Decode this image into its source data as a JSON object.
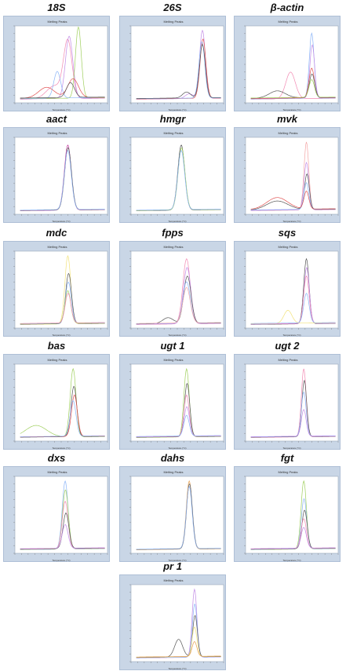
{
  "figure": {
    "panel_title": "Melting Peaks",
    "x_axis_label": "Temperature (°C)"
  },
  "chart_data": [
    {
      "type": "line",
      "gene": "18S",
      "xlim": [
        60,
        95
      ],
      "ylim": [
        0,
        1.3
      ],
      "series": [
        {
          "color": "#f28ab3",
          "peaks": [
            {
              "t": 80,
              "h": 0.95,
              "w": 1.6
            },
            {
              "t": 75,
              "h": 0.22,
              "w": 3
            }
          ]
        },
        {
          "color": "#c28be6",
          "peaks": [
            {
              "t": 80.5,
              "h": 1.05,
              "w": 1.4
            }
          ]
        },
        {
          "color": "#9fcf5d",
          "peaks": [
            {
              "t": 84,
              "h": 1.2,
              "w": 1.1
            }
          ]
        },
        {
          "color": "#8ab4f8",
          "peaks": [
            {
              "t": 76,
              "h": 0.45,
              "w": 1.3
            }
          ]
        },
        {
          "color": "#e05050",
          "peaks": [
            {
              "t": 82,
              "h": 0.32,
              "w": 2
            },
            {
              "t": 72,
              "h": 0.18,
              "w": 3
            }
          ]
        },
        {
          "color": "#555555",
          "peaks": [
            {
              "t": 81,
              "h": 0.25,
              "w": 1.5
            }
          ]
        }
      ]
    },
    {
      "type": "line",
      "gene": "26S",
      "xlim": [
        60,
        95
      ],
      "ylim": [
        0,
        1.3
      ],
      "series": [
        {
          "color": "#c28be6",
          "peaks": [
            {
              "t": 87,
              "h": 1.15,
              "w": 1.1
            },
            {
              "t": 82,
              "h": 0.08,
              "w": 1.5
            }
          ]
        },
        {
          "color": "#e05050",
          "peaks": [
            {
              "t": 87.2,
              "h": 1.0,
              "w": 1.1
            }
          ]
        },
        {
          "color": "#8ab4f8",
          "peaks": [
            {
              "t": 86.8,
              "h": 0.95,
              "w": 1.1
            }
          ]
        },
        {
          "color": "#555555",
          "peaks": [
            {
              "t": 87,
              "h": 0.9,
              "w": 1.1
            },
            {
              "t": 81,
              "h": 0.1,
              "w": 1.5
            }
          ]
        }
      ]
    },
    {
      "type": "line",
      "gene": "β-actin",
      "xlim": [
        60,
        95
      ],
      "ylim": [
        0,
        1.3
      ],
      "series": [
        {
          "color": "#f28ab3",
          "peaks": [
            {
              "t": 77,
              "h": 0.45,
              "w": 1.8
            }
          ]
        },
        {
          "color": "#8ab4f8",
          "peaks": [
            {
              "t": 85,
              "h": 1.1,
              "w": 0.9
            }
          ]
        },
        {
          "color": "#c28be6",
          "peaks": [
            {
              "t": 85.2,
              "h": 0.9,
              "w": 0.9
            }
          ]
        },
        {
          "color": "#e05050",
          "peaks": [
            {
              "t": 85,
              "h": 0.5,
              "w": 1
            }
          ]
        },
        {
          "color": "#555555",
          "peaks": [
            {
              "t": 85.1,
              "h": 0.4,
              "w": 1
            },
            {
              "t": 72,
              "h": 0.12,
              "w": 3
            }
          ]
        },
        {
          "color": "#9fcf5d",
          "peaks": [
            {
              "t": 85,
              "h": 0.3,
              "w": 1
            }
          ]
        }
      ]
    },
    {
      "type": "line",
      "gene": "aact",
      "xlim": [
        60,
        95
      ],
      "ylim": [
        0,
        1.3
      ],
      "series": [
        {
          "color": "#c040a0",
          "peaks": [
            {
              "t": 80,
              "h": 1.1,
              "w": 1.3
            }
          ]
        },
        {
          "color": "#555555",
          "peaks": [
            {
              "t": 80.1,
              "h": 1.05,
              "w": 1.3
            }
          ]
        },
        {
          "color": "#8ab4f8",
          "peaks": [
            {
              "t": 80,
              "h": 1.0,
              "w": 1.3
            }
          ]
        }
      ]
    },
    {
      "type": "line",
      "gene": "hmgr",
      "xlim": [
        60,
        95
      ],
      "ylim": [
        0,
        1.3
      ],
      "series": [
        {
          "color": "#555555",
          "peaks": [
            {
              "t": 79,
              "h": 1.1,
              "w": 1.3
            }
          ]
        },
        {
          "color": "#9fcf5d",
          "peaks": [
            {
              "t": 79.1,
              "h": 1.05,
              "w": 1.3
            }
          ]
        },
        {
          "color": "#8ab4f8",
          "peaks": [
            {
              "t": 79,
              "h": 1.0,
              "w": 1.3
            }
          ]
        }
      ]
    },
    {
      "type": "line",
      "gene": "mvk",
      "xlim": [
        60,
        95
      ],
      "ylim": [
        0,
        1.3
      ],
      "series": [
        {
          "color": "#f4a6a6",
          "peaks": [
            {
              "t": 83,
              "h": 1.15,
              "w": 0.9
            }
          ]
        },
        {
          "color": "#c28be6",
          "peaks": [
            {
              "t": 83,
              "h": 0.8,
              "w": 0.9
            }
          ]
        },
        {
          "color": "#555555",
          "peaks": [
            {
              "t": 83.2,
              "h": 0.6,
              "w": 0.9
            },
            {
              "t": 72,
              "h": 0.15,
              "w": 4
            }
          ]
        },
        {
          "color": "#8ab4f8",
          "peaks": [
            {
              "t": 83,
              "h": 0.45,
              "w": 0.9
            }
          ]
        },
        {
          "color": "#e05050",
          "peaks": [
            {
              "t": 83,
              "h": 0.3,
              "w": 0.9
            },
            {
              "t": 72,
              "h": 0.2,
              "w": 4
            }
          ]
        }
      ]
    },
    {
      "type": "line",
      "gene": "mdc",
      "xlim": [
        60,
        95
      ],
      "ylim": [
        0,
        1.3
      ],
      "series": [
        {
          "color": "#f2e27a",
          "peaks": [
            {
              "t": 80,
              "h": 1.15,
              "w": 1.1
            }
          ]
        },
        {
          "color": "#555555",
          "peaks": [
            {
              "t": 80.3,
              "h": 0.85,
              "w": 1.1
            }
          ]
        },
        {
          "color": "#8ab4f8",
          "peaks": [
            {
              "t": 80.2,
              "h": 0.7,
              "w": 1.1
            }
          ]
        },
        {
          "color": "#9fcf5d",
          "peaks": [
            {
              "t": 80,
              "h": 0.55,
              "w": 1.1
            }
          ]
        },
        {
          "color": "#f28ab3",
          "peaks": [
            {
              "t": 80.1,
              "h": 0.5,
              "w": 1.1
            }
          ]
        }
      ]
    },
    {
      "type": "line",
      "gene": "fpps",
      "xlim": [
        60,
        95
      ],
      "ylim": [
        0,
        1.3
      ],
      "series": [
        {
          "color": "#f28ab3",
          "peaks": [
            {
              "t": 81,
              "h": 1.1,
              "w": 1.4
            }
          ]
        },
        {
          "color": "#c28be6",
          "peaks": [
            {
              "t": 81.2,
              "h": 0.95,
              "w": 1.4
            }
          ]
        },
        {
          "color": "#555555",
          "peaks": [
            {
              "t": 81.3,
              "h": 0.8,
              "w": 1.4
            },
            {
              "t": 74,
              "h": 0.1,
              "w": 2
            }
          ]
        },
        {
          "color": "#8ab4f8",
          "peaks": [
            {
              "t": 81,
              "h": 0.7,
              "w": 1.4
            }
          ]
        },
        {
          "color": "#f4a6a6",
          "peaks": [
            {
              "t": 81,
              "h": 0.6,
              "w": 1.4
            }
          ]
        }
      ]
    },
    {
      "type": "line",
      "gene": "sqs",
      "xlim": [
        60,
        95
      ],
      "ylim": [
        0,
        1.3
      ],
      "series": [
        {
          "color": "#555555",
          "peaks": [
            {
              "t": 83,
              "h": 1.1,
              "w": 1
            }
          ]
        },
        {
          "color": "#c28be6",
          "peaks": [
            {
              "t": 83.1,
              "h": 0.95,
              "w": 1
            }
          ]
        },
        {
          "color": "#f28ab3",
          "peaks": [
            {
              "t": 83,
              "h": 0.8,
              "w": 1
            }
          ]
        },
        {
          "color": "#f2e27a",
          "peaks": [
            {
              "t": 76,
              "h": 0.22,
              "w": 1.5
            }
          ]
        },
        {
          "color": "#8ab4f8",
          "peaks": [
            {
              "t": 83,
              "h": 0.5,
              "w": 1
            }
          ]
        }
      ]
    },
    {
      "type": "line",
      "gene": "bas",
      "xlim": [
        60,
        95
      ],
      "ylim": [
        0,
        1.3
      ],
      "series": [
        {
          "color": "#9fcf5d",
          "peaks": [
            {
              "t": 82,
              "h": 1.15,
              "w": 1.1
            },
            {
              "t": 68,
              "h": 0.2,
              "w": 4
            }
          ]
        },
        {
          "color": "#555555",
          "peaks": [
            {
              "t": 82.3,
              "h": 0.85,
              "w": 1.1
            }
          ]
        },
        {
          "color": "#e05050",
          "peaks": [
            {
              "t": 82.5,
              "h": 0.7,
              "w": 1.1
            }
          ]
        },
        {
          "color": "#8ab4f8",
          "peaks": [
            {
              "t": 82,
              "h": 0.6,
              "w": 1.1
            }
          ]
        }
      ]
    },
    {
      "type": "line",
      "gene": "ugt 1",
      "xlim": [
        60,
        95
      ],
      "ylim": [
        0,
        1.3
      ],
      "series": [
        {
          "color": "#9fcf5d",
          "peaks": [
            {
              "t": 81,
              "h": 1.15,
              "w": 1
            }
          ]
        },
        {
          "color": "#555555",
          "peaks": [
            {
              "t": 81.2,
              "h": 0.9,
              "w": 1
            }
          ]
        },
        {
          "color": "#f28ab3",
          "peaks": [
            {
              "t": 81,
              "h": 0.7,
              "w": 1
            }
          ]
        },
        {
          "color": "#c28be6",
          "peaks": [
            {
              "t": 81.1,
              "h": 0.5,
              "w": 1
            }
          ]
        },
        {
          "color": "#8ab4f8",
          "peaks": [
            {
              "t": 81,
              "h": 0.35,
              "w": 1
            }
          ]
        }
      ]
    },
    {
      "type": "line",
      "gene": "ugt 2",
      "xlim": [
        60,
        95
      ],
      "ylim": [
        0,
        1.3
      ],
      "series": [
        {
          "color": "#f28ab3",
          "peaks": [
            {
              "t": 82,
              "h": 1.15,
              "w": 0.9
            }
          ]
        },
        {
          "color": "#555555",
          "peaks": [
            {
              "t": 82.2,
              "h": 0.95,
              "w": 0.9
            }
          ]
        },
        {
          "color": "#8ab4f8",
          "peaks": [
            {
              "t": 82,
              "h": 0.75,
              "w": 0.9
            }
          ]
        },
        {
          "color": "#c28be6",
          "peaks": [
            {
              "t": 82,
              "h": 0.45,
              "w": 0.9
            }
          ]
        }
      ]
    },
    {
      "type": "line",
      "gene": "dxs",
      "xlim": [
        60,
        95
      ],
      "ylim": [
        0,
        1.3
      ],
      "series": [
        {
          "color": "#8ab4f8",
          "peaks": [
            {
              "t": 79,
              "h": 1.15,
              "w": 1.1
            }
          ]
        },
        {
          "color": "#9fcf5d",
          "peaks": [
            {
              "t": 79.1,
              "h": 1.0,
              "w": 1.1
            }
          ]
        },
        {
          "color": "#f28ab3",
          "peaks": [
            {
              "t": 79,
              "h": 0.8,
              "w": 1.1
            }
          ]
        },
        {
          "color": "#555555",
          "peaks": [
            {
              "t": 79.3,
              "h": 0.6,
              "w": 1.1
            }
          ]
        },
        {
          "color": "#c28be6",
          "peaks": [
            {
              "t": 79,
              "h": 0.4,
              "w": 1.1
            }
          ]
        }
      ]
    },
    {
      "type": "line",
      "gene": "dahs",
      "xlim": [
        60,
        95
      ],
      "ylim": [
        0,
        1.3
      ],
      "series": [
        {
          "color": "#e8a050",
          "peaks": [
            {
              "t": 82,
              "h": 1.15,
              "w": 1.1
            }
          ]
        },
        {
          "color": "#555555",
          "peaks": [
            {
              "t": 82.1,
              "h": 1.1,
              "w": 1.1
            }
          ]
        },
        {
          "color": "#8ab4f8",
          "peaks": [
            {
              "t": 82,
              "h": 1.05,
              "w": 1.1
            }
          ]
        }
      ]
    },
    {
      "type": "line",
      "gene": "fgt",
      "xlim": [
        60,
        95
      ],
      "ylim": [
        0,
        1.3
      ],
      "series": [
        {
          "color": "#9fcf5d",
          "peaks": [
            {
              "t": 82,
              "h": 1.15,
              "w": 1
            }
          ]
        },
        {
          "color": "#8ab4f8",
          "peaks": [
            {
              "t": 82.1,
              "h": 0.85,
              "w": 1
            }
          ]
        },
        {
          "color": "#555555",
          "peaks": [
            {
              "t": 82.3,
              "h": 0.65,
              "w": 1
            }
          ]
        },
        {
          "color": "#f28ab3",
          "peaks": [
            {
              "t": 82,
              "h": 0.5,
              "w": 1
            }
          ]
        },
        {
          "color": "#c28be6",
          "peaks": [
            {
              "t": 82,
              "h": 0.35,
              "w": 1
            }
          ]
        }
      ]
    },
    {
      "type": "line",
      "gene": "pr 1",
      "xlim": [
        60,
        95
      ],
      "ylim": [
        0,
        1.3
      ],
      "series": [
        {
          "color": "#c28be6",
          "peaks": [
            {
              "t": 84,
              "h": 1.15,
              "w": 0.9
            }
          ]
        },
        {
          "color": "#8ab4f8",
          "peaks": [
            {
              "t": 84.1,
              "h": 0.9,
              "w": 0.9
            }
          ]
        },
        {
          "color": "#555555",
          "peaks": [
            {
              "t": 84.2,
              "h": 0.7,
              "w": 0.9
            },
            {
              "t": 78,
              "h": 0.3,
              "w": 1.5
            }
          ]
        },
        {
          "color": "#f2e27a",
          "peaks": [
            {
              "t": 84,
              "h": 0.5,
              "w": 0.9
            }
          ]
        },
        {
          "color": "#e8a050",
          "peaks": [
            {
              "t": 84,
              "h": 0.25,
              "w": 0.9
            }
          ]
        }
      ]
    }
  ]
}
